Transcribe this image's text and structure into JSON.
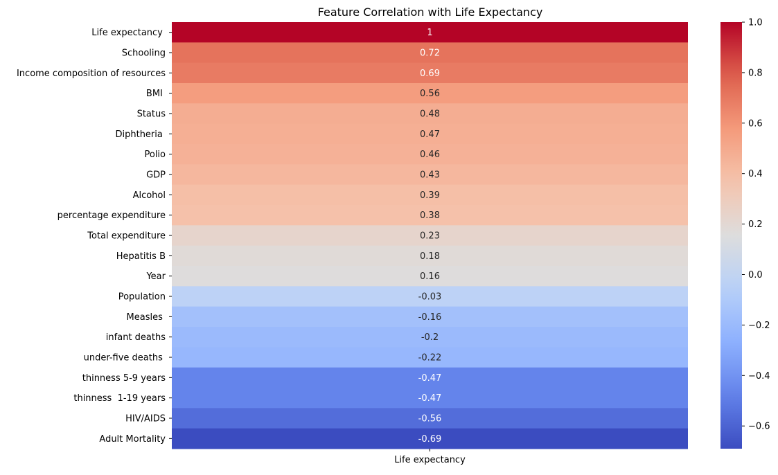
{
  "chart_data": {
    "type": "heatmap",
    "title": "Feature Correlation with Life Expectancy",
    "columns": [
      "Life expectancy"
    ],
    "rows": [
      "Life expectancy ",
      "Schooling",
      "Income composition of resources",
      " BMI ",
      "Status",
      "Diphtheria ",
      "Polio",
      "GDP",
      "Alcohol",
      "percentage expenditure",
      "Total expenditure",
      "Hepatitis B",
      "Year",
      "Population",
      "Measles ",
      "infant deaths",
      "under-five deaths ",
      " thinness 5-9 years",
      " thinness  1-19 years",
      " HIV/AIDS",
      "Adult Mortality"
    ],
    "values": [
      1,
      0.72,
      0.69,
      0.56,
      0.48,
      0.47,
      0.46,
      0.43,
      0.39,
      0.38,
      0.23,
      0.18,
      0.16,
      -0.03,
      -0.16,
      -0.2,
      -0.22,
      -0.47,
      -0.47,
      -0.56,
      -0.69
    ],
    "labels": [
      "1",
      "0.72",
      "0.69",
      "0.56",
      "0.48",
      "0.47",
      "0.46",
      "0.43",
      "0.39",
      "0.38",
      "0.23",
      "0.18",
      "0.16",
      "-0.03",
      "-0.16",
      "-0.2",
      "-0.22",
      "-0.47",
      "-0.47",
      "-0.56",
      "-0.69"
    ],
    "colormap": "coolwarm",
    "colorbar": {
      "range": [
        -0.69,
        1.0
      ],
      "ticks": [
        1.0,
        0.8,
        0.6,
        0.4,
        0.2,
        0.0,
        -0.2,
        -0.4,
        -0.6
      ],
      "tick_labels": [
        "1.0",
        "0.8",
        "0.6",
        "0.4",
        "0.2",
        "0.0",
        "−0.2",
        "−0.4",
        "−0.6"
      ]
    }
  }
}
